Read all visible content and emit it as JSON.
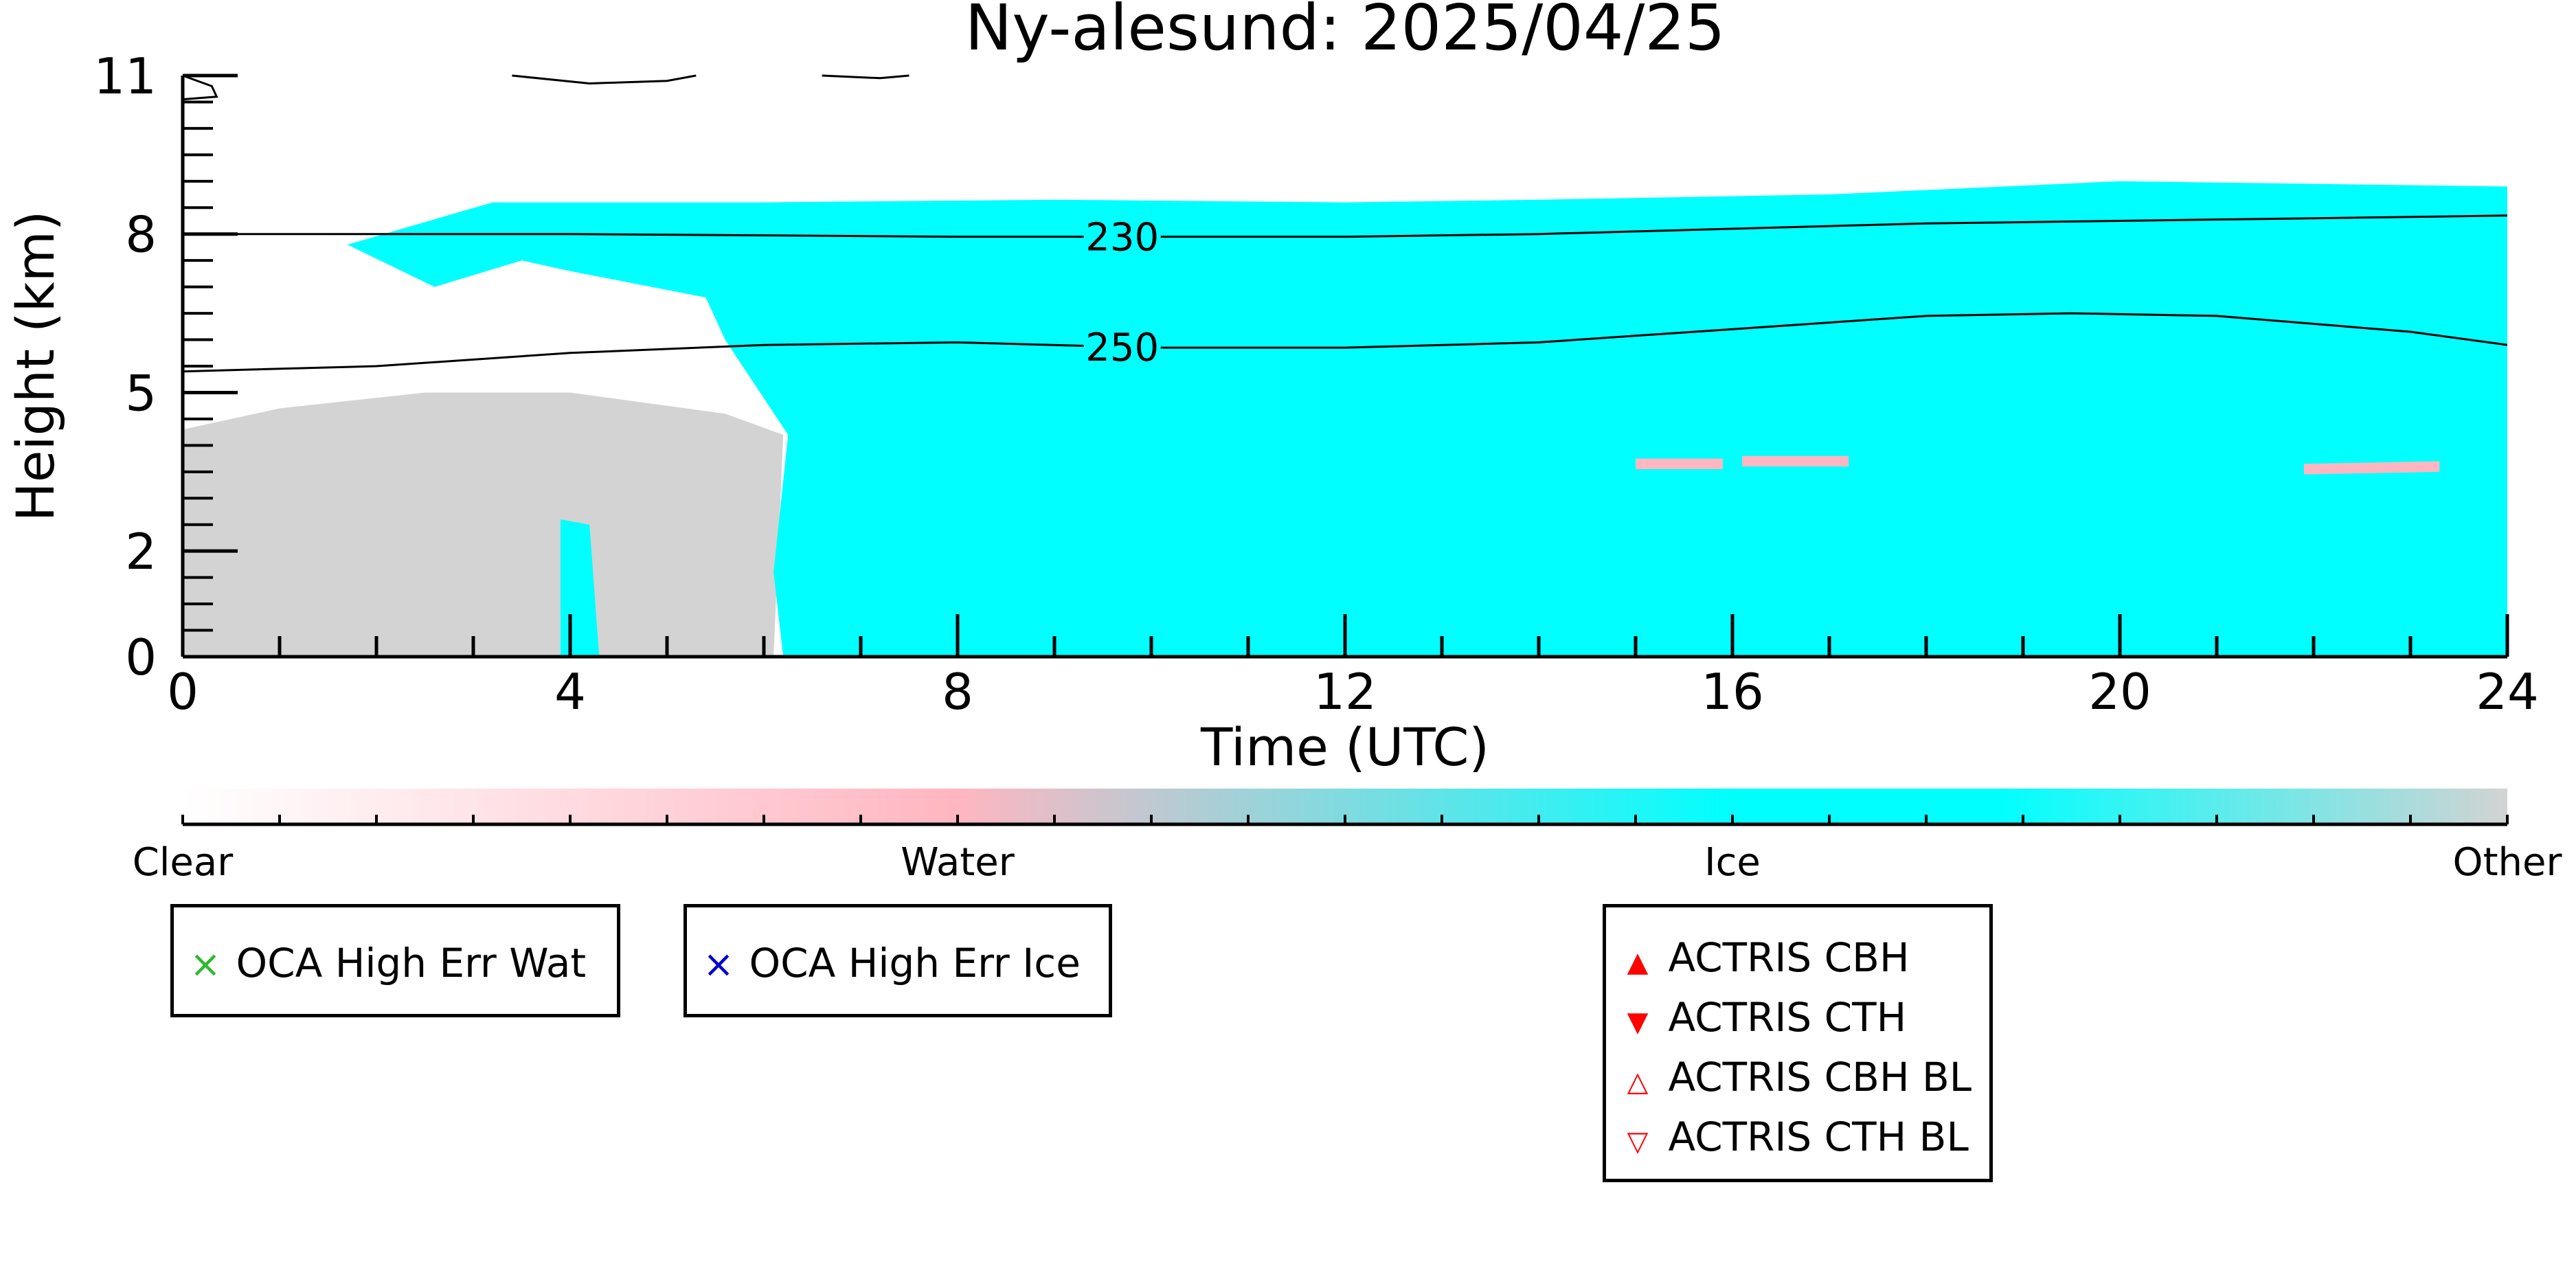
{
  "chart_data": {
    "type": "heatmap",
    "title": "Ny-alesund: 2025/04/25",
    "xlabel": "Time (UTC)",
    "ylabel": "Height (km)",
    "xlim": [
      0,
      24
    ],
    "ylim": [
      0,
      11
    ],
    "x_ticks": [
      "0",
      "4",
      "8",
      "12",
      "16",
      "20",
      "24"
    ],
    "y_ticks": [
      "0",
      "2",
      "5",
      "8",
      "11"
    ],
    "categories": [
      "Clear",
      "Water",
      "Ice",
      "Other"
    ],
    "category_colors": {
      "Clear": "#ffffff",
      "Water": "#ffb6c1",
      "Ice": "#00ffff",
      "Other": "#d3d3d3"
    },
    "contours": [
      {
        "label": "230",
        "points": [
          [
            0,
            8.0
          ],
          [
            4,
            8.0
          ],
          [
            8,
            7.95
          ],
          [
            12,
            7.95
          ],
          [
            14,
            8.0
          ],
          [
            16,
            8.1
          ],
          [
            18,
            8.2
          ],
          [
            20,
            8.25
          ],
          [
            22,
            8.3
          ],
          [
            24,
            8.35
          ]
        ]
      },
      {
        "label": "250",
        "points": [
          [
            0,
            5.4
          ],
          [
            2,
            5.5
          ],
          [
            4,
            5.75
          ],
          [
            6,
            5.9
          ],
          [
            8,
            5.95
          ],
          [
            10,
            5.85
          ],
          [
            12,
            5.85
          ],
          [
            14,
            5.95
          ],
          [
            16,
            6.2
          ],
          [
            18,
            6.45
          ],
          [
            19.5,
            6.5
          ],
          [
            21,
            6.45
          ],
          [
            23,
            6.15
          ],
          [
            24,
            5.9
          ]
        ]
      }
    ],
    "regions": [
      {
        "category": "Other",
        "description_x": [
          0,
          6.2
        ],
        "polygon": [
          [
            0,
            0
          ],
          [
            0,
            4.3
          ],
          [
            1,
            4.7
          ],
          [
            2.5,
            5.0
          ],
          [
            4,
            5.0
          ],
          [
            5.6,
            4.6
          ],
          [
            6.2,
            4.2
          ],
          [
            6.1,
            0
          ]
        ]
      },
      {
        "category": "Ice",
        "polygon": [
          [
            1.7,
            7.8
          ],
          [
            3.2,
            8.6
          ],
          [
            6,
            8.6
          ],
          [
            9,
            8.65
          ],
          [
            12,
            8.6
          ],
          [
            14,
            8.65
          ],
          [
            17,
            8.75
          ],
          [
            20,
            9.0
          ],
          [
            24,
            8.9
          ],
          [
            24,
            0
          ],
          [
            6.2,
            0
          ],
          [
            6.1,
            1.6
          ],
          [
            6.25,
            4.2
          ],
          [
            5.6,
            6.0
          ],
          [
            5.4,
            6.8
          ],
          [
            4,
            7.3
          ],
          [
            3.5,
            7.5
          ],
          [
            2.6,
            7.0
          ]
        ]
      },
      {
        "category": "Ice",
        "polygon": [
          [
            3.9,
            0
          ],
          [
            3.9,
            2.6
          ],
          [
            4.2,
            2.5
          ],
          [
            4.3,
            0
          ]
        ]
      },
      {
        "category": "Water",
        "polygon": [
          [
            16.1,
            3.8
          ],
          [
            17.2,
            3.8
          ],
          [
            17.2,
            3.6
          ],
          [
            16.1,
            3.6
          ]
        ]
      },
      {
        "category": "Water",
        "polygon": [
          [
            21.9,
            3.65
          ],
          [
            23.3,
            3.7
          ],
          [
            23.3,
            3.5
          ],
          [
            21.9,
            3.45
          ]
        ]
      },
      {
        "category": "Water",
        "polygon": [
          [
            15,
            3.75
          ],
          [
            15.9,
            3.75
          ],
          [
            15.9,
            3.55
          ],
          [
            15,
            3.55
          ]
        ]
      }
    ],
    "high_contours": [
      {
        "points": [
          [
            3.4,
            11.0
          ],
          [
            4.2,
            10.85
          ],
          [
            5,
            10.9
          ],
          [
            5.3,
            11.0
          ]
        ]
      },
      {
        "points": [
          [
            6.6,
            11.0
          ],
          [
            7.2,
            10.95
          ],
          [
            7.5,
            11.0
          ]
        ]
      },
      {
        "points": [
          [
            0,
            11.0
          ],
          [
            0.3,
            10.8
          ],
          [
            0.35,
            10.6
          ],
          [
            0,
            10.55
          ]
        ]
      }
    ],
    "colorbar": {
      "stops": [
        "#ffffff",
        "#ffb6c1",
        "#00ffff",
        "#00ffff",
        "#d3d3d3"
      ],
      "labels": [
        "Clear",
        "Water",
        "Ice",
        "Other"
      ]
    }
  },
  "legend_oca_water": {
    "label": "OCA High Err Wat",
    "marker": "×",
    "color": "#2eb82e"
  },
  "legend_oca_ice": {
    "label": "OCA High Err Ice",
    "marker": "×",
    "color": "#0000cc"
  },
  "legend_actris": [
    {
      "label": "ACTRIS CBH",
      "marker": "▲",
      "color": "#ff0000"
    },
    {
      "label": "ACTRIS CTH",
      "marker": "▼",
      "color": "#ff0000"
    },
    {
      "label": "ACTRIS CBH BL",
      "marker": "△",
      "color": "#ff0000"
    },
    {
      "label": "ACTRIS CTH BL",
      "marker": "▽",
      "color": "#ff0000"
    }
  ]
}
